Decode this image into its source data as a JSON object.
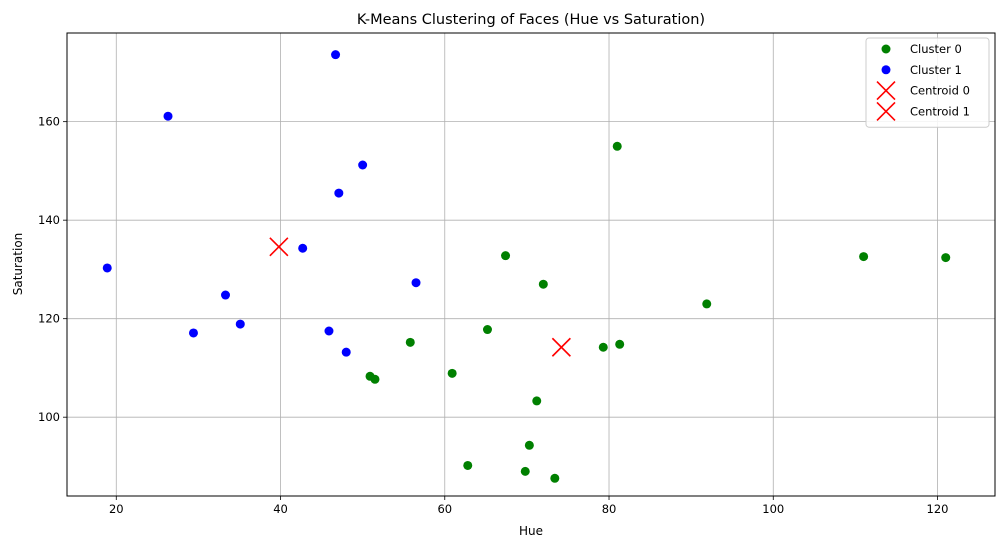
{
  "chart_data": {
    "type": "scatter",
    "title": "K-Means Clustering of Faces (Hue vs Saturation)",
    "xlabel": "Hue",
    "ylabel": "Saturation",
    "xlim": [
      14,
      127
    ],
    "ylim": [
      84,
      178
    ],
    "xticks": [
      20,
      40,
      60,
      80,
      100,
      120
    ],
    "yticks": [
      100,
      120,
      140,
      160
    ],
    "grid": true,
    "legend_position": "top-right",
    "series": [
      {
        "name": "Cluster 0",
        "color": "#008000",
        "marker": "circle",
        "points": [
          [
            81.0,
            155.0
          ],
          [
            67.4,
            132.8
          ],
          [
            72.0,
            127.0
          ],
          [
            111.0,
            132.6
          ],
          [
            121.0,
            132.4
          ],
          [
            91.9,
            123.0
          ],
          [
            65.2,
            117.8
          ],
          [
            55.8,
            115.2
          ],
          [
            79.3,
            114.2
          ],
          [
            81.3,
            114.8
          ],
          [
            50.9,
            108.3
          ],
          [
            51.5,
            107.7
          ],
          [
            60.9,
            108.9
          ],
          [
            71.2,
            103.3
          ],
          [
            70.3,
            94.3
          ],
          [
            62.8,
            90.2
          ],
          [
            69.8,
            89.0
          ],
          [
            73.4,
            87.6
          ]
        ]
      },
      {
        "name": "Cluster 1",
        "color": "#0000ff",
        "marker": "circle",
        "points": [
          [
            46.7,
            173.6
          ],
          [
            26.3,
            161.1
          ],
          [
            50.0,
            151.2
          ],
          [
            47.1,
            145.5
          ],
          [
            42.7,
            134.3
          ],
          [
            18.9,
            130.3
          ],
          [
            56.5,
            127.3
          ],
          [
            33.3,
            124.8
          ],
          [
            29.4,
            117.1
          ],
          [
            35.1,
            118.9
          ],
          [
            45.9,
            117.5
          ],
          [
            48.0,
            113.2
          ]
        ]
      },
      {
        "name": "Centroid 0",
        "color": "#ff0000",
        "marker": "x",
        "points": [
          [
            74.2,
            114.2
          ]
        ]
      },
      {
        "name": "Centroid 1",
        "color": "#ff0000",
        "marker": "x",
        "points": [
          [
            39.8,
            134.6
          ]
        ]
      }
    ]
  }
}
